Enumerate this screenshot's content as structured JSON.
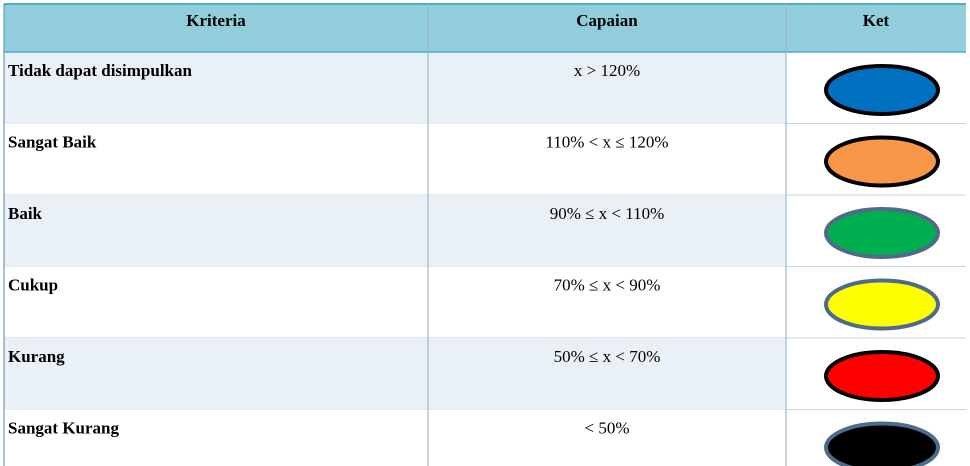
{
  "table": {
    "header": [
      "Kriteria",
      "Capaian",
      "Ket"
    ],
    "rows": [
      {
        "kriteria": "Tidak  dapat disimpulkan",
        "capaian": "x > 120%",
        "fill": "#0070c0",
        "stroke": "#000000"
      },
      {
        "kriteria": "Sangat Baik",
        "capaian": "110% < x ≤ 120%",
        "fill": "#f79646",
        "stroke": "#000000"
      },
      {
        "kriteria": "Baik",
        "capaian": "90% ≤ x < 110%",
        "fill": "#00b050",
        "stroke": "#4f6b8a"
      },
      {
        "kriteria": "Cukup",
        "capaian": "70% ≤ x < 90%",
        "fill": "#ffff00",
        "stroke": "#4f6b8a"
      },
      {
        "kriteria": "Kurang",
        "capaian": "50% ≤ x < 70%",
        "fill": "#ff0000",
        "stroke": "#000000"
      },
      {
        "kriteria": "Sangat Kurang",
        "capaian": "< 50%",
        "fill": "#000000",
        "stroke": "#4f6b8a"
      }
    ]
  }
}
